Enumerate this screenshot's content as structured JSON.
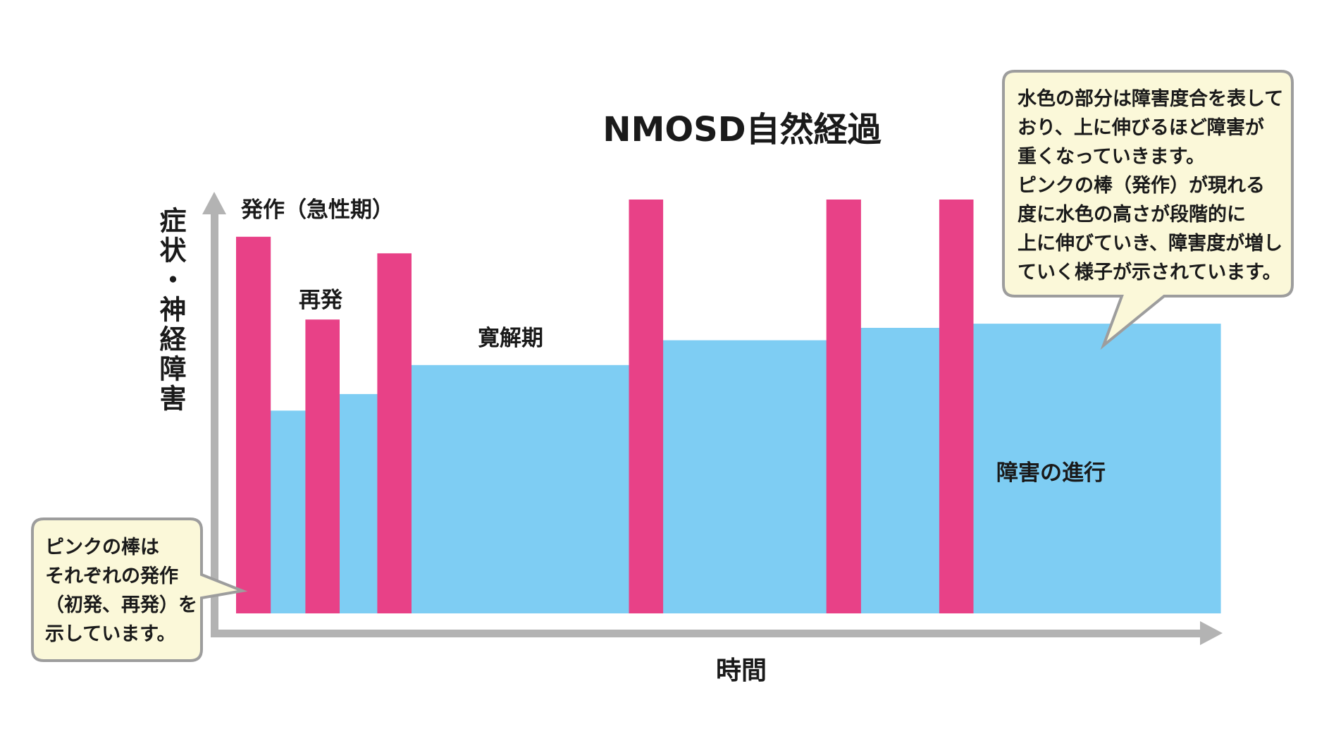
{
  "title": "NMOSD自然経過",
  "y_axis_label": "症状・神経障害",
  "x_axis_label": "時間",
  "labels": {
    "attack": "発作（急性期）",
    "relapse": "再発",
    "remission": "寛解期",
    "progression": "障害の進行"
  },
  "callout_right": {
    "lines": [
      "水色の部分は障害度合を表して",
      "おり、上に伸びるほど障害が",
      "重くなっていきます。",
      "ピンクの棒（発作）が現れる",
      "度に水色の高さが段階的に",
      "上に伸びていき、障害度が増し",
      "ていく様子が示されています。"
    ]
  },
  "callout_left": {
    "lines": [
      "ピンクの棒は",
      "それぞれの発作",
      "（初発、再発）を",
      "示しています。"
    ]
  },
  "colors": {
    "pink": "#e84187",
    "blue": "#7ecdf3",
    "axis": "#b3b3b3",
    "callout_fill": "#fbf8d9",
    "callout_stroke": "#9d9d9d"
  },
  "chart_data": {
    "type": "bar",
    "y_scale": [
      0,
      100
    ],
    "attacks": [
      {
        "start": 0.0,
        "end": 40.5,
        "value": 91
      },
      {
        "start": 82.0,
        "end": 122.0,
        "value": 71
      },
      {
        "start": 167.0,
        "end": 207.0,
        "value": 87
      },
      {
        "start": 464.5,
        "end": 504.5,
        "value": 100
      },
      {
        "start": 698.0,
        "end": 738.5,
        "value": 100
      },
      {
        "start": 831.5,
        "end": 871.5,
        "value": 100
      }
    ],
    "disability": [
      {
        "start": 40.5,
        "end": 82.0,
        "value": 49
      },
      {
        "start": 122.0,
        "end": 167.0,
        "value": 53
      },
      {
        "start": 207.0,
        "end": 464.5,
        "value": 60
      },
      {
        "start": 504.5,
        "end": 698.0,
        "value": 66
      },
      {
        "start": 738.5,
        "end": 831.5,
        "value": 69
      },
      {
        "start": 871.5,
        "end": 1164.0,
        "value": 70
      }
    ],
    "x_range": [
      0,
      1164
    ]
  }
}
